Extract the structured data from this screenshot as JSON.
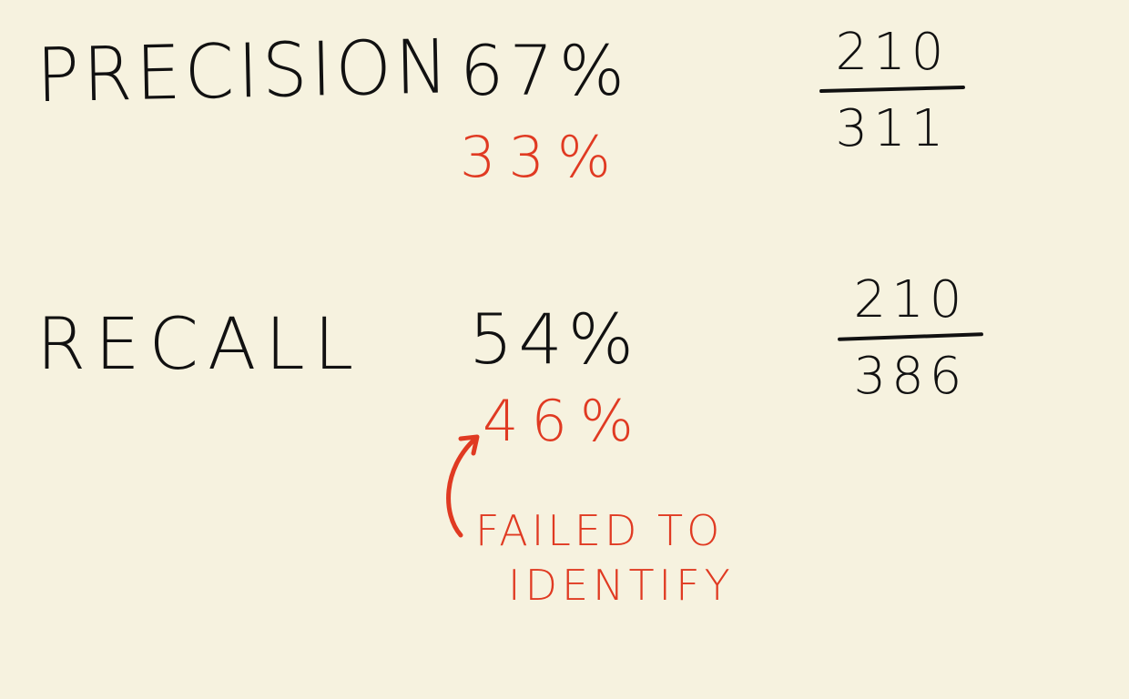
{
  "precision": {
    "label": "PRECISION",
    "percent": "67%",
    "miss_percent": "33%",
    "numerator": "210",
    "denominator": "311"
  },
  "recall": {
    "label": "RECALL",
    "percent": "54%",
    "miss_percent": "46%",
    "numerator": "210",
    "denominator": "386"
  },
  "annotation": {
    "line1": "FAILED TO",
    "line2": "IDENTIFY"
  },
  "colors": {
    "background": "#f6f2df",
    "ink": "#111111",
    "accent": "#e03a22"
  }
}
